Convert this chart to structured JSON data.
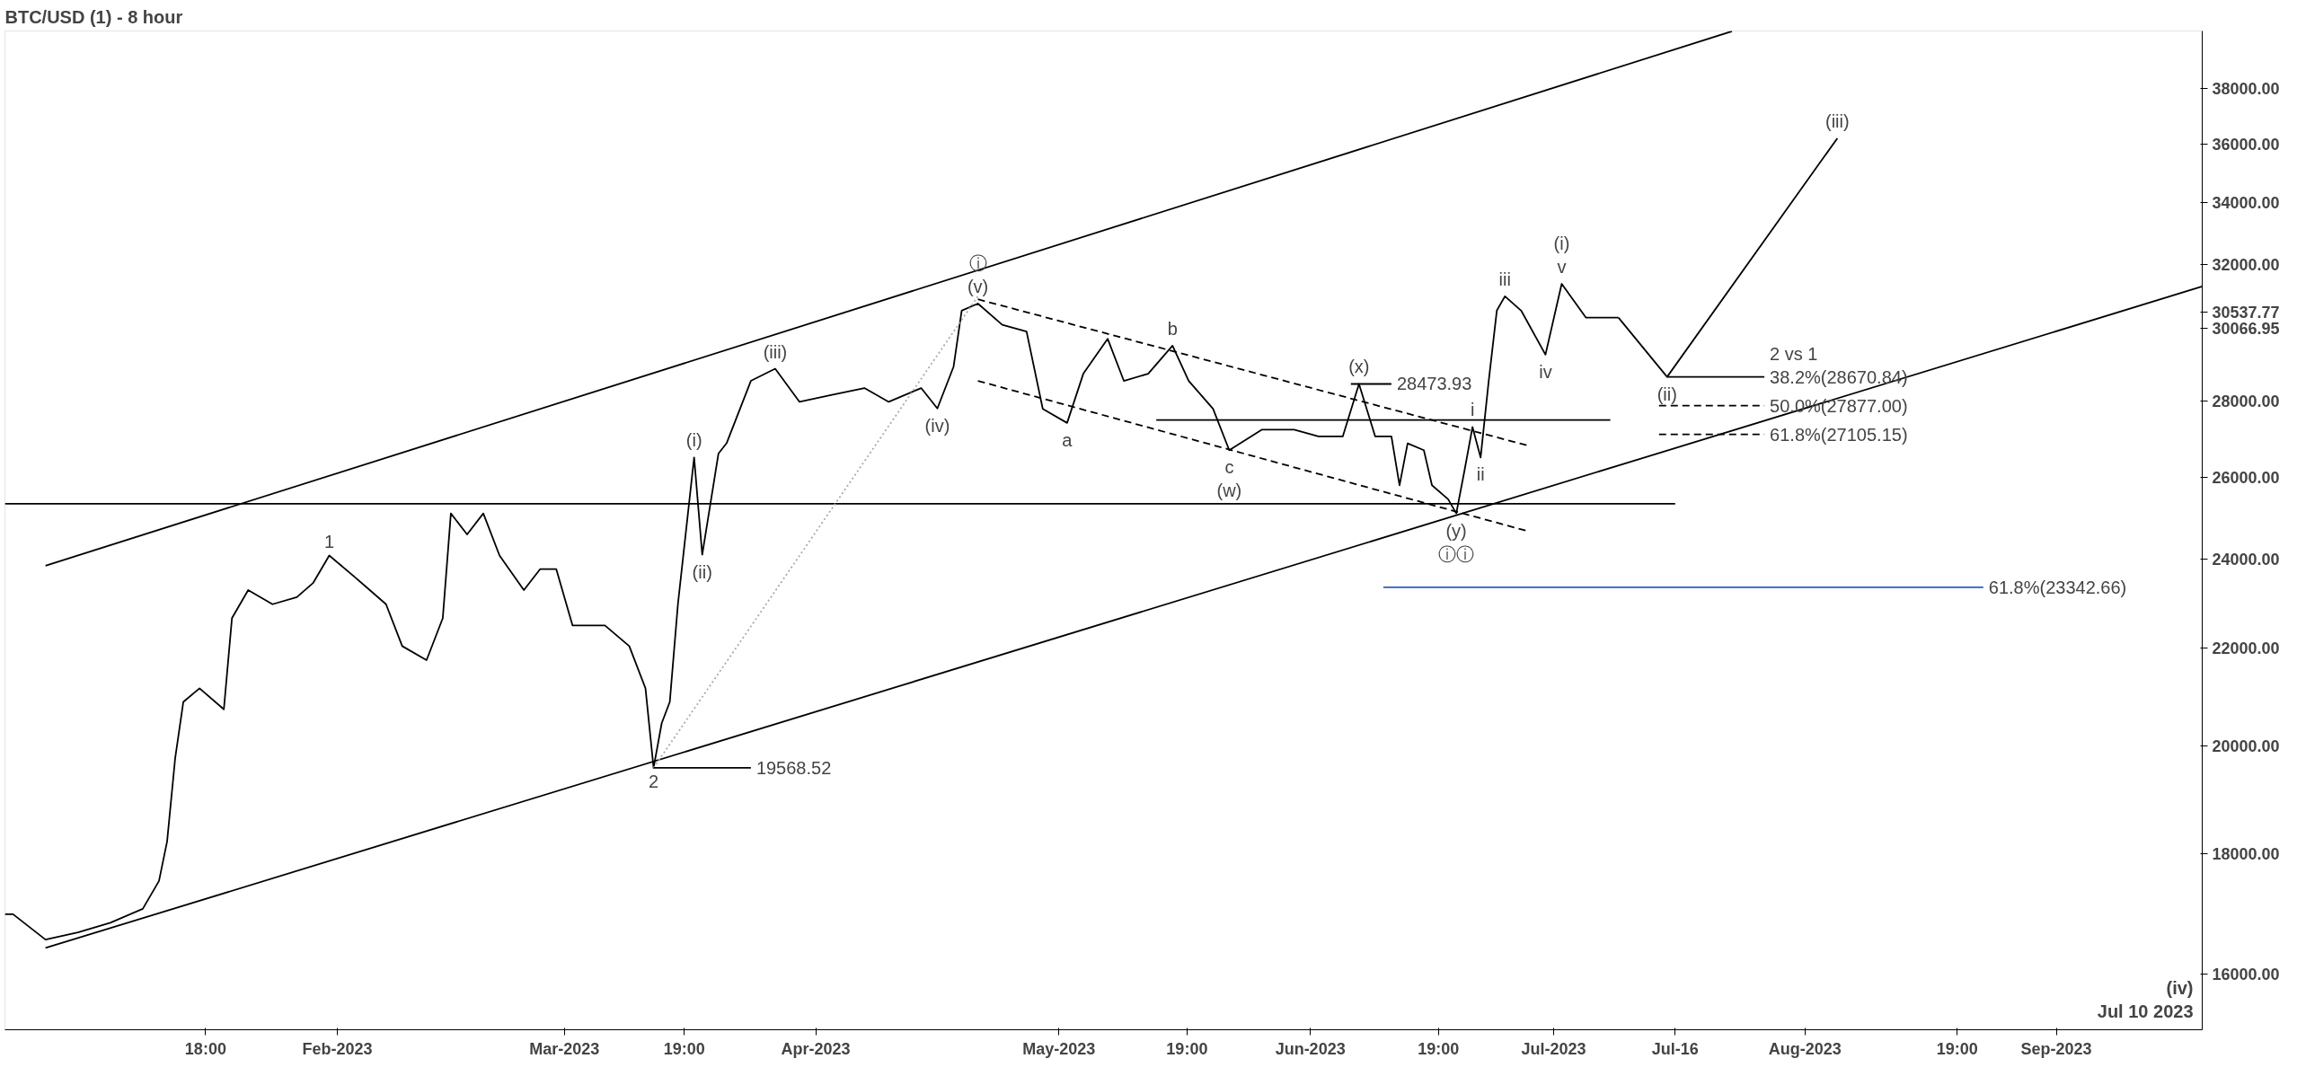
{
  "chart_data": {
    "type": "line",
    "title": "BTC/USD (1) - 8 hour",
    "log": "y",
    "grid": false,
    "xlim": [
      "2022-12-22",
      "2023-09-19"
    ],
    "ylim": [
      15150,
      40200
    ],
    "xticks": [
      {
        "value": "2023-01-15T18:00",
        "label": "18:00"
      },
      {
        "value": "2023-02-01",
        "label": "Feb-2023"
      },
      {
        "value": "2023-03-01",
        "label": "Mar-2023"
      },
      {
        "value": "2023-03-15T19:00",
        "label": "19:00"
      },
      {
        "value": "2023-04-01",
        "label": "Apr-2023"
      },
      {
        "value": "2023-05-01",
        "label": "May-2023"
      },
      {
        "value": "2023-05-16T19:00",
        "label": "19:00"
      },
      {
        "value": "2023-06-01",
        "label": "Jun-2023"
      },
      {
        "value": "2023-06-16T19:00",
        "label": "19:00"
      },
      {
        "value": "2023-07-01",
        "label": "Jul-2023"
      },
      {
        "value": "2023-07-16",
        "label": "Jul-16"
      },
      {
        "value": "2023-08-01",
        "label": "Aug-2023"
      },
      {
        "value": "2023-08-19T19:00",
        "label": "19:00"
      },
      {
        "value": "2023-09-01",
        "label": "Sep-2023"
      }
    ],
    "yticks": [
      {
        "value": 16000,
        "label": "16000.00"
      },
      {
        "value": 18000,
        "label": "18000.00"
      },
      {
        "value": 20000,
        "label": "20000.00"
      },
      {
        "value": 22000,
        "label": "22000.00"
      },
      {
        "value": 24000,
        "label": "24000.00"
      },
      {
        "value": 26000,
        "label": "26000.00"
      },
      {
        "value": 28000,
        "label": "28000.00"
      },
      {
        "value": 30066.95,
        "label": "30066.95"
      },
      {
        "value": 30537.77,
        "label": "30537.77"
      },
      {
        "value": 32000,
        "label": "32000.00"
      },
      {
        "value": 34000,
        "label": "34000.00"
      },
      {
        "value": 36000,
        "label": "36000.00"
      },
      {
        "value": 38000,
        "label": "38000.00"
      }
    ],
    "series": [
      {
        "color": "#000000",
        "line_style": "solid",
        "x": [
          "2022-12-22",
          "2022-12-23",
          "2022-12-27",
          "2022-12-31",
          "2023-01-04",
          "2023-01-08",
          "2023-01-10",
          "2023-01-11",
          "2023-01-12",
          "2023-01-13",
          "2023-01-15",
          "2023-01-18",
          "2023-01-19",
          "2023-01-21",
          "2023-01-24",
          "2023-01-27",
          "2023-01-29",
          "2023-01-31",
          "2023-02-03",
          "2023-02-05",
          "2023-02-07",
          "2023-02-09",
          "2023-02-12",
          "2023-02-14",
          "2023-02-15",
          "2023-02-17",
          "2023-02-19",
          "2023-02-21",
          "2023-02-24",
          "2023-02-26",
          "2023-02-28",
          "2023-03-02",
          "2023-03-06",
          "2023-03-09",
          "2023-03-11",
          "2023-03-12",
          "2023-03-13",
          "2023-03-14",
          "2023-03-15",
          "2023-03-17",
          "2023-03-18",
          "2023-03-20",
          "2023-03-21",
          "2023-03-24",
          "2023-03-27",
          "2023-03-30",
          "2023-04-03",
          "2023-04-07",
          "2023-04-10",
          "2023-04-14",
          "2023-04-16",
          "2023-04-18",
          "2023-04-19",
          "2023-04-21",
          "2023-04-24",
          "2023-04-27",
          "2023-04-29",
          "2023-05-02",
          "2023-05-04",
          "2023-05-07",
          "2023-05-09",
          "2023-05-12",
          "2023-05-15",
          "2023-05-17",
          "2023-05-20",
          "2023-05-22",
          "2023-05-26",
          "2023-05-30",
          "2023-06-02",
          "2023-06-05",
          "2023-06-07",
          "2023-06-09",
          "2023-06-11",
          "2023-06-12",
          "2023-06-13",
          "2023-06-15",
          "2023-06-16",
          "2023-06-18",
          "2023-06-19",
          "2023-06-20",
          "2023-06-21",
          "2023-06-22",
          "2023-06-23",
          "2023-06-24",
          "2023-06-25",
          "2023-06-27",
          "2023-06-30",
          "2023-07-02",
          "2023-07-05",
          "2023-07-09"
        ],
        "values": [
          16960,
          16960,
          16545,
          16660,
          16820,
          17050,
          17520,
          18210,
          19760,
          20870,
          21150,
          20720,
          22650,
          23280,
          22960,
          23120,
          23440,
          24080,
          23600,
          23280,
          22960,
          22040,
          21740,
          22650,
          25090,
          24580,
          25090,
          24080,
          23280,
          23760,
          23760,
          22490,
          22490,
          22040,
          21150,
          19568.52,
          20440,
          20870,
          22960,
          26500,
          24100,
          26600,
          26870,
          28560,
          28900,
          27980,
          28170,
          28360,
          27980,
          28360,
          27800,
          28960,
          30590,
          30800,
          30170,
          29970,
          27790,
          27410,
          28760,
          29760,
          28560,
          28760,
          29560,
          28560,
          27790,
          26690,
          27230,
          27230,
          27050,
          27050,
          28473.93,
          27050,
          27050,
          25790,
          26870,
          26690,
          25790,
          25440,
          25090,
          26150,
          27300,
          26500,
          28560,
          30590,
          31020,
          30590,
          29300,
          31400,
          30380,
          30380
        ]
      },
      {
        "color": "#000000",
        "line_style": "solid",
        "x": [
          "2023-07-09",
          "2023-07-15",
          "2023-08-05"
        ],
        "values": [
          30380,
          28670.84,
          36200
        ]
      },
      {
        "color": "#000000",
        "line_style": "solid",
        "x": [
          "2022-12-27",
          "2023-07-23"
        ],
        "values": [
          23840,
          40190
        ]
      },
      {
        "color": "#000000",
        "line_style": "solid",
        "x": [
          "2022-12-27",
          "2023-09-19"
        ],
        "values": [
          16410,
          31320
        ]
      },
      {
        "color": "#000000",
        "line_style": "solid",
        "x": [
          "2022-12-22",
          "2023-07-16"
        ],
        "values": [
          25330,
          25330
        ]
      },
      {
        "color": "#000000",
        "line_style": "solid",
        "x": [
          "2023-05-13",
          "2023-07-08"
        ],
        "values": [
          27490,
          27490
        ]
      },
      {
        "color": "#000000",
        "line_style": "dashed",
        "x": [
          "2023-04-21",
          "2023-06-28"
        ],
        "values": [
          30930,
          26800
        ]
      },
      {
        "color": "#000000",
        "line_style": "dashed",
        "x": [
          "2023-04-21",
          "2023-06-28"
        ],
        "values": [
          28560,
          24650
        ]
      },
      {
        "color": "#aaaaaa",
        "line_style": "dotted",
        "x": [
          "2023-03-12",
          "2023-04-21"
        ],
        "values": [
          19568.52,
          31020
        ]
      },
      {
        "color": "#000000",
        "line_style": "solid",
        "x": [
          "2023-03-12",
          "2023-03-24"
        ],
        "values": [
          19568.52,
          19568.52
        ]
      },
      {
        "color": "#000000",
        "line_style": "solid",
        "x": [
          "2023-06-06",
          "2023-06-11"
        ],
        "values": [
          28473.93,
          28473.93
        ]
      },
      {
        "color": "#000000",
        "line_style": "solid",
        "x": [
          "2023-07-15",
          "2023-07-27"
        ],
        "values": [
          28670.84,
          28670.84
        ]
      },
      {
        "color": "#000000",
        "line_style": "dashed",
        "x": [
          "2023-07-14",
          "2023-07-27"
        ],
        "values": [
          27877,
          27877
        ]
      },
      {
        "color": "#000000",
        "line_style": "dashed",
        "x": [
          "2023-07-14",
          "2023-07-27"
        ],
        "values": [
          27105.15,
          27105.15
        ]
      },
      {
        "color": "#2b5fbf",
        "line_style": "solid",
        "x": [
          "2023-06-10",
          "2023-08-23"
        ],
        "values": [
          23342.66,
          23342.66
        ]
      }
    ],
    "annotations": [
      {
        "text": "1",
        "x": "2023-01-31",
        "y": 24080
      },
      {
        "text": "2",
        "x": "2023-03-12",
        "y": 19568.52
      },
      {
        "text": "19568.52",
        "x": "2023-03-24",
        "y": 19568.52
      },
      {
        "text": "(i)",
        "x": "2023-03-17",
        "y": 26500
      },
      {
        "text": "(ii)",
        "x": "2023-03-18",
        "y": 24100
      },
      {
        "text": "(iii)",
        "x": "2023-03-27",
        "y": 28900
      },
      {
        "text": "(iv)",
        "x": "2023-04-16",
        "y": 27800
      },
      {
        "text": "(v)",
        "x": "2023-04-21",
        "y": 30800
      },
      {
        "text": "ⓘ",
        "x": "2023-04-21",
        "y": 30800
      },
      {
        "text": "a",
        "x": "2023-05-02",
        "y": 27410
      },
      {
        "text": "b",
        "x": "2023-05-15",
        "y": 29560
      },
      {
        "text": "c",
        "x": "2023-05-22",
        "y": 26690
      },
      {
        "text": "(w)",
        "x": "2023-05-22",
        "y": 26690
      },
      {
        "text": "(x)",
        "x": "2023-06-07",
        "y": 28473.93
      },
      {
        "text": "28473.93",
        "x": "2023-06-11",
        "y": 28473.93
      },
      {
        "text": "(y)",
        "x": "2023-06-19",
        "y": 25090
      },
      {
        "text": "ⓘⓘ",
        "x": "2023-06-19",
        "y": 25090
      },
      {
        "text": "i",
        "x": "2023-06-21",
        "y": 27300
      },
      {
        "text": "ii",
        "x": "2023-06-22",
        "y": 26500
      },
      {
        "text": "iii",
        "x": "2023-06-25",
        "y": 31020
      },
      {
        "text": "iv",
        "x": "2023-06-30",
        "y": 29300
      },
      {
        "text": "v",
        "x": "2023-07-02",
        "y": 31400
      },
      {
        "text": "(i)",
        "x": "2023-07-02",
        "y": 31400
      },
      {
        "text": "(ii)",
        "x": "2023-07-15",
        "y": 28670.84
      },
      {
        "text": "(iii)",
        "x": "2023-08-05",
        "y": 36200
      },
      {
        "text": "38.2%(28670.84)",
        "x": "2023-07-27",
        "y": 28670.84
      },
      {
        "text": "2 vs 1",
        "x": "2023-07-27",
        "y": 28670.84
      },
      {
        "text": "50.0%(27877.00)",
        "x": "2023-07-27",
        "y": 27877
      },
      {
        "text": "61.8%(27105.15)",
        "x": "2023-07-27",
        "y": 27105.15
      },
      {
        "text": "61.8%(23342.66)",
        "x": "2023-08-23",
        "y": 23342.66
      },
      "Jul 10 2023",
      "(iv)"
    ]
  }
}
